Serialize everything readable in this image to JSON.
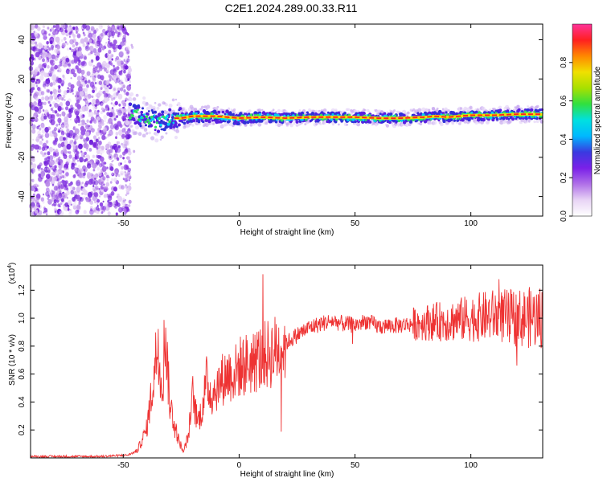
{
  "page": {
    "title": "C2E1.2024.289.00.33.R11"
  },
  "colors": {
    "spectrogram_background": "#ffffff",
    "noise_points": "#8a2be2",
    "snr_line": "#ee3333",
    "colorscale": [
      "#ffffff",
      "#e8d4f5",
      "#b070e8",
      "#7a20e8",
      "#3a3ae0",
      "#00b8ff",
      "#00e0e0",
      "#30e040",
      "#a8e000",
      "#f0e000",
      "#ff8800",
      "#ff2020",
      "#ff3399"
    ]
  },
  "chart_data": [
    {
      "type": "heatmap",
      "name": "spectrogram",
      "xlabel": "Height of straight line (km)",
      "ylabel": "Frequency (Hz)",
      "xlim": [
        -90,
        131
      ],
      "ylim": [
        -50,
        48
      ],
      "xticks": [
        -50,
        0,
        50,
        100
      ],
      "yticks": [
        -40,
        -20,
        0,
        20,
        40
      ],
      "noise_region_x": [
        -90,
        -47
      ],
      "signal_track": {
        "x": [
          -47,
          -40,
          -35,
          -30,
          -25,
          -20,
          -10,
          0,
          10,
          20,
          30,
          40,
          50,
          60,
          70,
          80,
          85,
          90,
          100,
          110,
          120,
          131
        ],
        "frequency": [
          3,
          0,
          -2,
          0,
          0,
          1,
          1,
          0,
          0.5,
          0,
          0.5,
          0.5,
          0.5,
          0,
          0,
          0.5,
          1,
          0.5,
          1.5,
          1.5,
          2,
          2
        ]
      },
      "colorbar": {
        "label": "Normalized spectral amplitude",
        "range": [
          0,
          1
        ],
        "ticks": [
          "0.0",
          "0.2",
          "0.4",
          "0.6",
          "0.8"
        ]
      }
    },
    {
      "type": "line",
      "name": "snr",
      "xlabel": "Height of straight line (km)",
      "ylabel": "SNR (10 * v/v)",
      "scale_label": "(x10",
      "scale_exponent": "4",
      "xlim": [
        -90,
        131
      ],
      "ylim": [
        0,
        1.38
      ],
      "xticks": [
        -50,
        0,
        50,
        100
      ],
      "yticks": [
        "0.2",
        "0.4",
        "0.6",
        "0.8",
        "1.0",
        "1.2"
      ],
      "x": [
        -90,
        -60,
        -48,
        -44,
        -40,
        -37,
        -35,
        -33,
        -32,
        -30,
        -28,
        -26,
        -24,
        -22,
        -20,
        -18,
        -16,
        -14,
        -12,
        -10,
        -8,
        -5,
        -2,
        0,
        5,
        10,
        15,
        20,
        25,
        30,
        35,
        40,
        45,
        50,
        55,
        60,
        70,
        80,
        90,
        100,
        110,
        120,
        131
      ],
      "y": [
        0.01,
        0.01,
        0.02,
        0.05,
        0.2,
        0.55,
        0.85,
        0.5,
        0.95,
        0.4,
        0.25,
        0.12,
        0.05,
        0.15,
        0.45,
        0.25,
        0.35,
        0.55,
        0.45,
        0.5,
        0.55,
        0.6,
        0.6,
        0.65,
        0.68,
        0.72,
        0.76,
        0.82,
        0.88,
        0.93,
        0.96,
        0.98,
        0.96,
        0.95,
        0.98,
        0.94,
        0.95,
        0.97,
        0.98,
        1.0,
        1.02,
        1.0,
        1.01
      ]
    }
  ]
}
